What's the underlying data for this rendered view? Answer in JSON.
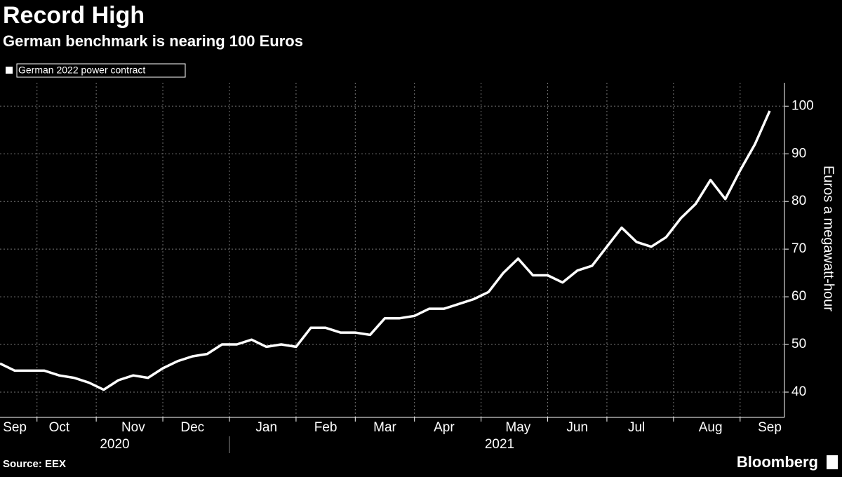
{
  "chart_data": {
    "type": "line",
    "title": "Record High",
    "subtitle": "German benchmark is nearing 100 Euros",
    "y_axis_label": "Euros a megawatt-hour",
    "source": "Source: EEX",
    "brand": "Bloomberg",
    "categories": [
      null,
      "Sep",
      null,
      null,
      "Oct",
      null,
      null,
      null,
      null,
      "Nov",
      null,
      null,
      null,
      "Dec",
      null,
      null,
      null,
      null,
      "Jan",
      null,
      null,
      null,
      "Feb",
      null,
      null,
      null,
      "Mar",
      null,
      null,
      null,
      "Apr",
      null,
      null,
      null,
      null,
      "May",
      null,
      null,
      null,
      "Jun",
      null,
      null,
      null,
      "Jul",
      null,
      null,
      null,
      null,
      "Aug",
      null,
      null,
      null,
      "Sep"
    ],
    "x_groups": [
      "2020",
      "2021"
    ],
    "series": [
      {
        "name": "German 2022 power contract",
        "color": "#ffffff",
        "values": [
          46,
          44.5,
          44.5,
          44.5,
          43.5,
          43,
          42,
          40.5,
          42.5,
          43.5,
          43,
          45,
          46.5,
          47.5,
          48,
          50,
          50,
          51,
          49.5,
          50,
          49.5,
          53.5,
          53.5,
          52.5,
          52.5,
          52,
          55.5,
          55.5,
          56,
          57.5,
          57.5,
          58.5,
          59.5,
          61,
          65,
          68,
          64.5,
          64.5,
          63,
          65.5,
          66.5,
          70.5,
          74.5,
          71.5,
          70.5,
          72.5,
          76.5,
          79.5,
          84.5,
          80.5,
          86.5,
          92,
          99
        ]
      }
    ],
    "ylim": [
      34.7,
      104.9
    ],
    "yticks": [
      40,
      50,
      60,
      70,
      80,
      90,
      100
    ],
    "grid": true
  }
}
